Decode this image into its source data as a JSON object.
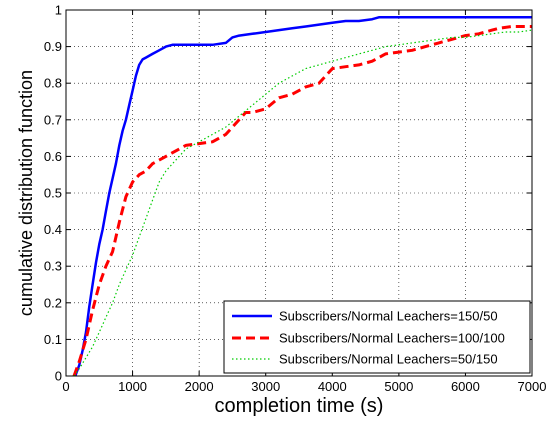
{
  "chart_data": {
    "type": "line",
    "title": "",
    "xlabel": "completion time (s)",
    "ylabel": "cumulative distribution function",
    "xlim": [
      0,
      7000
    ],
    "ylim": [
      0,
      1
    ],
    "xticks": [
      "0",
      "1000",
      "2000",
      "3000",
      "4000",
      "5000",
      "6000",
      "7000"
    ],
    "yticks": [
      "0",
      "0.1",
      "0.2",
      "0.3",
      "0.4",
      "0.5",
      "0.6",
      "0.7",
      "0.8",
      "0.9",
      "1"
    ],
    "grid": true,
    "legend_position": "bottom-right",
    "series": [
      {
        "name": "Subscribers/Normal Leachers=150/50",
        "color": "#0000ff",
        "style": "solid",
        "x": [
          140,
          200,
          250,
          300,
          350,
          400,
          450,
          500,
          550,
          600,
          650,
          700,
          750,
          800,
          850,
          900,
          950,
          1000,
          1050,
          1100,
          1150,
          1200,
          1300,
          1400,
          1500,
          1600,
          1800,
          2000,
          2200,
          2400,
          2500,
          2600,
          2800,
          3000,
          3200,
          3400,
          3600,
          3800,
          4000,
          4200,
          4400,
          4600,
          4700,
          5000,
          5500,
          6000,
          6500,
          7000
        ],
        "y": [
          0.0,
          0.03,
          0.07,
          0.12,
          0.19,
          0.25,
          0.31,
          0.36,
          0.4,
          0.45,
          0.5,
          0.54,
          0.58,
          0.63,
          0.67,
          0.7,
          0.74,
          0.78,
          0.82,
          0.85,
          0.865,
          0.87,
          0.88,
          0.89,
          0.9,
          0.905,
          0.905,
          0.905,
          0.905,
          0.91,
          0.925,
          0.93,
          0.935,
          0.94,
          0.945,
          0.95,
          0.955,
          0.96,
          0.965,
          0.97,
          0.97,
          0.975,
          0.98,
          0.98,
          0.98,
          0.98,
          0.98,
          0.98
        ]
      },
      {
        "name": "Subscribers/Normal Leachers=100/100",
        "color": "#ff0000",
        "style": "dashed",
        "x": [
          120,
          200,
          300,
          400,
          500,
          600,
          700,
          800,
          900,
          1000,
          1100,
          1200,
          1300,
          1400,
          1500,
          1600,
          1800,
          2000,
          2200,
          2400,
          2600,
          2700,
          2800,
          3000,
          3200,
          3400,
          3600,
          3800,
          4000,
          4200,
          4400,
          4600,
          4800,
          5000,
          5200,
          5400,
          5600,
          5800,
          6000,
          6200,
          6400,
          6500,
          6700,
          7000
        ],
        "y": [
          0.0,
          0.04,
          0.1,
          0.18,
          0.25,
          0.3,
          0.34,
          0.42,
          0.49,
          0.53,
          0.55,
          0.56,
          0.58,
          0.59,
          0.6,
          0.61,
          0.63,
          0.635,
          0.64,
          0.66,
          0.7,
          0.72,
          0.72,
          0.73,
          0.76,
          0.77,
          0.79,
          0.8,
          0.84,
          0.845,
          0.85,
          0.86,
          0.88,
          0.885,
          0.89,
          0.9,
          0.91,
          0.92,
          0.93,
          0.935,
          0.945,
          0.95,
          0.955,
          0.955
        ]
      },
      {
        "name": "Subscribers/Normal Leachers=50/150",
        "color": "#00cc00",
        "style": "dotted",
        "x": [
          120,
          200,
          300,
          400,
          500,
          600,
          700,
          800,
          900,
          1000,
          1100,
          1200,
          1300,
          1400,
          1500,
          1600,
          1700,
          1800,
          2000,
          2200,
          2400,
          2600,
          2800,
          3000,
          3200,
          3400,
          3600,
          3800,
          4000,
          4200,
          4400,
          4600,
          4800,
          5000,
          5200,
          5400,
          5600,
          5800,
          6000,
          6200,
          6400,
          6600,
          6800,
          7000
        ],
        "y": [
          0.0,
          0.02,
          0.05,
          0.08,
          0.12,
          0.16,
          0.2,
          0.25,
          0.29,
          0.33,
          0.38,
          0.43,
          0.48,
          0.53,
          0.56,
          0.58,
          0.6,
          0.62,
          0.64,
          0.66,
          0.68,
          0.71,
          0.74,
          0.77,
          0.8,
          0.82,
          0.84,
          0.85,
          0.86,
          0.87,
          0.88,
          0.89,
          0.9,
          0.905,
          0.91,
          0.915,
          0.92,
          0.925,
          0.925,
          0.93,
          0.935,
          0.94,
          0.94,
          0.945
        ]
      }
    ]
  }
}
